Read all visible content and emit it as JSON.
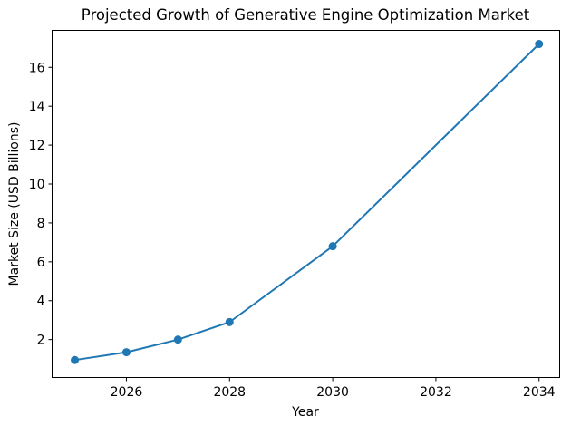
{
  "chart_data": {
    "type": "line",
    "title": "Projected Growth of Generative Engine Optimization Market",
    "xlabel": "Year",
    "ylabel": "Market Size (USD Billions)",
    "x": [
      2025,
      2026,
      2027,
      2028,
      2030,
      2034
    ],
    "values": [
      0.95,
      1.35,
      2.0,
      2.9,
      6.8,
      17.2
    ],
    "xticks": [
      2026,
      2028,
      2030,
      2032,
      2034
    ],
    "yticks": [
      2,
      4,
      6,
      8,
      10,
      12,
      14,
      16
    ],
    "xlim": [
      2024.56,
      2034.4
    ],
    "ylim": [
      0.05,
      17.9
    ],
    "grid": false,
    "legend_position": "none",
    "line_color": "#1f77b4",
    "marker": "circle",
    "axes_edge_color": "#000000",
    "background_color": "#ffffff",
    "text_color": "#000000"
  }
}
